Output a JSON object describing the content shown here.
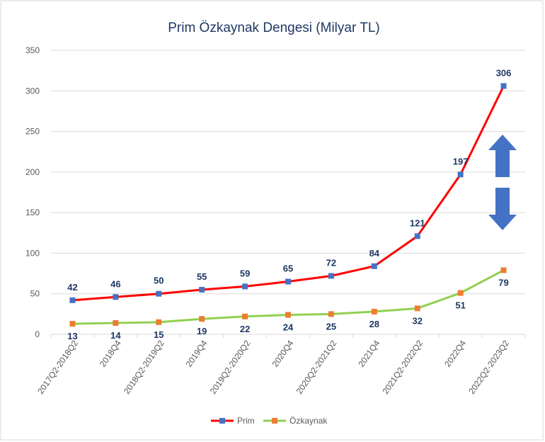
{
  "chart_data": {
    "type": "line",
    "title": "Prim Özkaynak Dengesi (Milyar TL)",
    "categories": [
      "2017Q2-2018Q2",
      "2018Q4",
      "2018Q2-2019Q2",
      "2019Q4",
      "2019Q2-2020Q2",
      "2020Q4",
      "2020Q2-2021Q2",
      "2021Q4",
      "2021Q2-2022Q2",
      "2022Q4",
      "2022Q2-2023Q2"
    ],
    "series": [
      {
        "name": "Prim",
        "values": [
          42,
          46,
          50,
          55,
          59,
          65,
          72,
          84,
          121,
          197,
          306
        ],
        "line_color": "#ff0000",
        "marker_color": "#4472c4"
      },
      {
        "name": "Özkaynak",
        "values": [
          13,
          14,
          15,
          19,
          22,
          24,
          25,
          28,
          32,
          51,
          79
        ],
        "line_color": "#92d050",
        "marker_color": "#ed7d31"
      }
    ],
    "ylim": [
      0,
      350
    ],
    "yticks": [
      0,
      50,
      100,
      150,
      200,
      250,
      300,
      350
    ],
    "grid": true,
    "legend": "bottom",
    "annotation": "double-arrow-icon",
    "annotation_color": "#4472c4"
  }
}
